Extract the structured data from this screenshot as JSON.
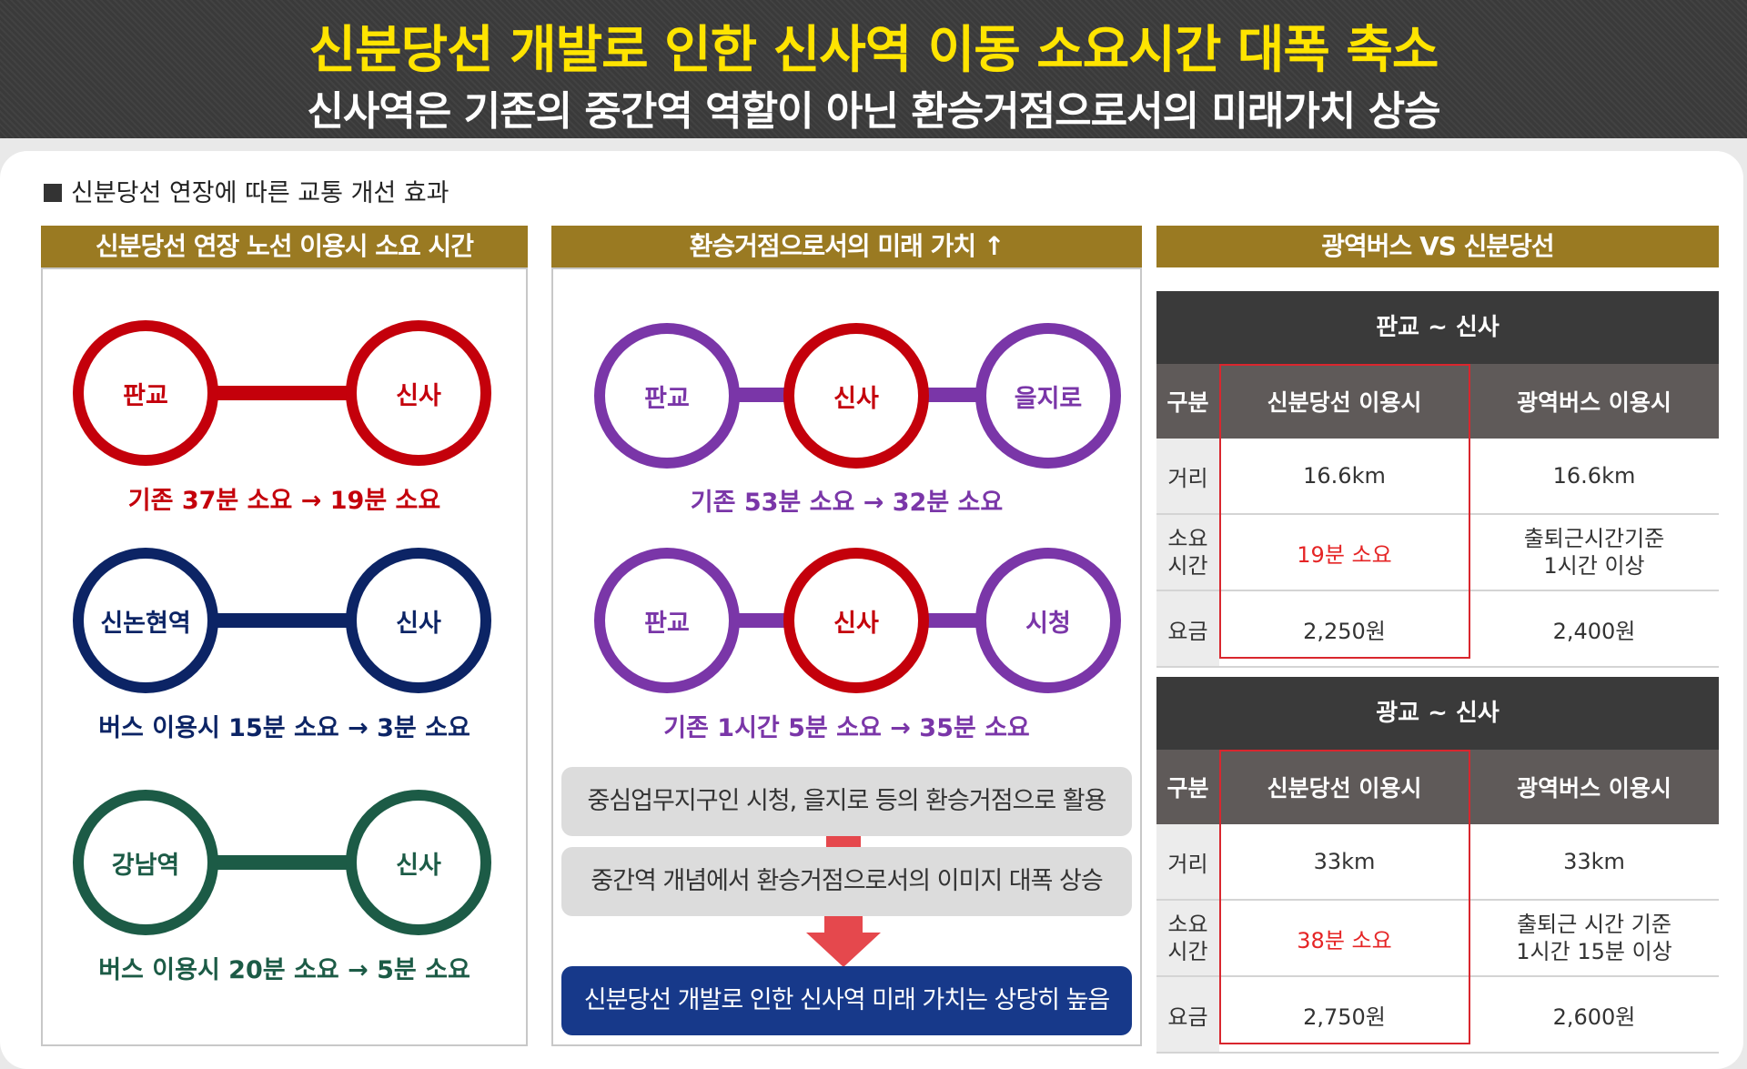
{
  "header": {
    "title": "신분당선 개발로 인한 신사역 이동 소요시간 대폭 축소",
    "subtitle": "신사역은 기존의 중간역 역할이 아닌 환승거점으로서의 미래가치 상승"
  },
  "section_label": "신분당선 연장에 따른 교통 개선 효과",
  "col1": {
    "title": "신분당선 연장 노선 이용시 소요 시간",
    "routes": [
      {
        "from": "판교",
        "to": "신사",
        "caption": "기존 37분 소요 → 19분 소요",
        "color": "#c4000b"
      },
      {
        "from": "신논현역",
        "to": "신사",
        "caption": "버스 이용시 15분 소요 → 3분 소요",
        "color": "#0c2465"
      },
      {
        "from": "강남역",
        "to": "신사",
        "caption": "버스 이용시 20분 소요 → 5분 소요",
        "color": "#1c5b46"
      }
    ]
  },
  "col2": {
    "title": "환승거점으로서의 미래 가치 ↑",
    "routes": [
      {
        "a": "판교",
        "b": "신사",
        "c": "을지로",
        "caption": "기존 53분 소요 → 32분 소요"
      },
      {
        "a": "판교",
        "b": "신사",
        "c": "시청",
        "caption": "기존 1시간 5분 소요 → 35분 소요"
      }
    ],
    "notes": [
      "중심업무지구인 시청, 을지로 등의 환승거점으로 활용",
      "중간역 개념에서 환승거점으로서의 이미지 대폭 상승"
    ],
    "conclusion": "신분당선 개발로 인한 신사역 미래 가치는 상당히 높음",
    "colors": {
      "purple": "#7a36a8",
      "red": "#c4000b",
      "blue": "#17398a"
    }
  },
  "col3": {
    "title": "광역버스 VS 신분당선",
    "tables": [
      {
        "title": "판교 ~ 신사",
        "headers": [
          "구분",
          "신분당선 이용시",
          "광역버스 이용시"
        ],
        "rows": [
          {
            "label": "거리",
            "subway": "16.6km",
            "bus": "16.6km"
          },
          {
            "label": "소요\n시간",
            "subway": "19분 소요",
            "bus": "출퇴근시간기준\n1시간 이상"
          },
          {
            "label": "요금",
            "subway": "2,250원",
            "bus": "2,400원"
          }
        ]
      },
      {
        "title": "광교 ~ 신사",
        "headers": [
          "구분",
          "신분당선 이용시",
          "광역버스 이용시"
        ],
        "rows": [
          {
            "label": "거리",
            "subway": "33km",
            "bus": "33km"
          },
          {
            "label": "소요\n시간",
            "subway": "38분 소요",
            "bus": "출퇴근 시간 기준\n1시간 15분 이상"
          },
          {
            "label": "요금",
            "subway": "2,750원",
            "bus": "2,600원"
          }
        ]
      }
    ]
  }
}
